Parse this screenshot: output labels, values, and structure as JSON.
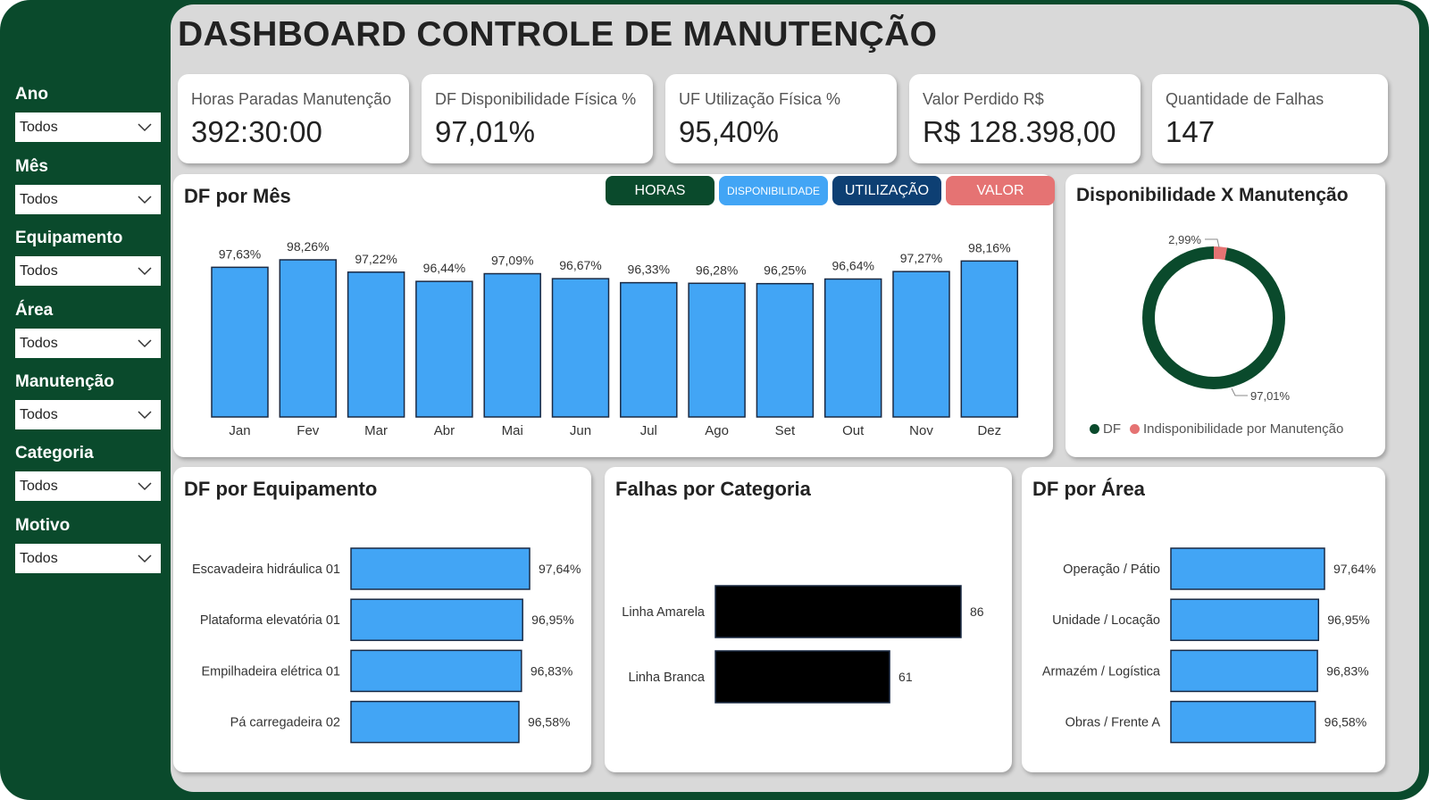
{
  "title": "DASHBOARD CONTROLE DE MANUTENÇÃO",
  "filters": [
    {
      "label": "Ano",
      "value": "Todos"
    },
    {
      "label": "Mês",
      "value": "Todos"
    },
    {
      "label": "Equipamento",
      "value": "Todos"
    },
    {
      "label": "Área",
      "value": "Todos"
    },
    {
      "label": "Manutenção",
      "value": "Todos"
    },
    {
      "label": "Categoria",
      "value": "Todos"
    },
    {
      "label": "Motivo",
      "value": "Todos"
    }
  ],
  "kpis": [
    {
      "label": "Horas Paradas Manutenção",
      "value": "392:30:00"
    },
    {
      "label": "DF Disponibilidade Física %",
      "value": "97,01%"
    },
    {
      "label": "UF Utilização Física %",
      "value": "95,40%"
    },
    {
      "label": "Valor Perdido R$",
      "value": "R$ 128.398,00"
    },
    {
      "label": "Quantidade de Falhas",
      "value": "147"
    }
  ],
  "toggle_buttons": [
    {
      "label": "HORAS",
      "color": "#0a4a2c"
    },
    {
      "label": "DISPONIBILIDADE",
      "color": "#42a5f5"
    },
    {
      "label": "UTILIZAÇÃO",
      "color": "#0d3f73"
    },
    {
      "label": "VALOR",
      "color": "#e57373"
    }
  ],
  "colors": {
    "bar": "#42a5f5",
    "bar_dark": "#000000",
    "dark_green": "#0a4a2c",
    "red": "#e57373"
  },
  "chart_data": [
    {
      "id": "df-por-mes",
      "type": "bar",
      "title": "DF por Mês",
      "categories": [
        "Jan",
        "Fev",
        "Mar",
        "Abr",
        "Mai",
        "Jun",
        "Jul",
        "Ago",
        "Set",
        "Out",
        "Nov",
        "Dez"
      ],
      "values": [
        97.63,
        98.26,
        97.22,
        96.44,
        97.09,
        96.67,
        96.33,
        96.28,
        96.25,
        96.64,
        97.27,
        98.16
      ],
      "labels": [
        "97,63%",
        "98,26%",
        "97,22%",
        "96,44%",
        "97,09%",
        "96,67%",
        "96,33%",
        "96,28%",
        "96,25%",
        "96,64%",
        "97,27%",
        "98,16%"
      ]
    },
    {
      "id": "disp-x-manut",
      "type": "pie",
      "title": "Disponibilidade X Manutenção",
      "slices": [
        {
          "name": "DF",
          "value": 97.01,
          "label": "97,01%",
          "color": "#0a4a2c"
        },
        {
          "name": "Indisponibilidade por Manutenção",
          "value": 2.99,
          "label": "2,99%",
          "color": "#e57373"
        }
      ]
    },
    {
      "id": "df-por-equipamento",
      "type": "bar",
      "title": "DF por Equipamento",
      "categories": [
        "Escavadeira hidráulica 01",
        "Plataforma elevatória 01",
        "Empilhadeira elétrica 01",
        "Pá carregadeira 02"
      ],
      "values": [
        97.64,
        96.95,
        96.83,
        96.58
      ],
      "labels": [
        "97,64%",
        "96,95%",
        "96,83%",
        "96,58%"
      ]
    },
    {
      "id": "falhas-por-categoria",
      "type": "bar",
      "title": "Falhas por Categoria",
      "categories": [
        "Linha Amarela",
        "Linha Branca"
      ],
      "values": [
        86,
        61
      ],
      "labels": [
        "86",
        "61"
      ]
    },
    {
      "id": "df-por-area",
      "type": "bar",
      "title": "DF por Área",
      "categories": [
        "Operação / Pátio",
        "Unidade / Locação",
        "Armazém / Logística",
        "Obras / Frente A"
      ],
      "values": [
        97.64,
        96.95,
        96.83,
        96.58
      ],
      "labels": [
        "97,64%",
        "96,95%",
        "96,83%",
        "96,58%"
      ]
    }
  ]
}
